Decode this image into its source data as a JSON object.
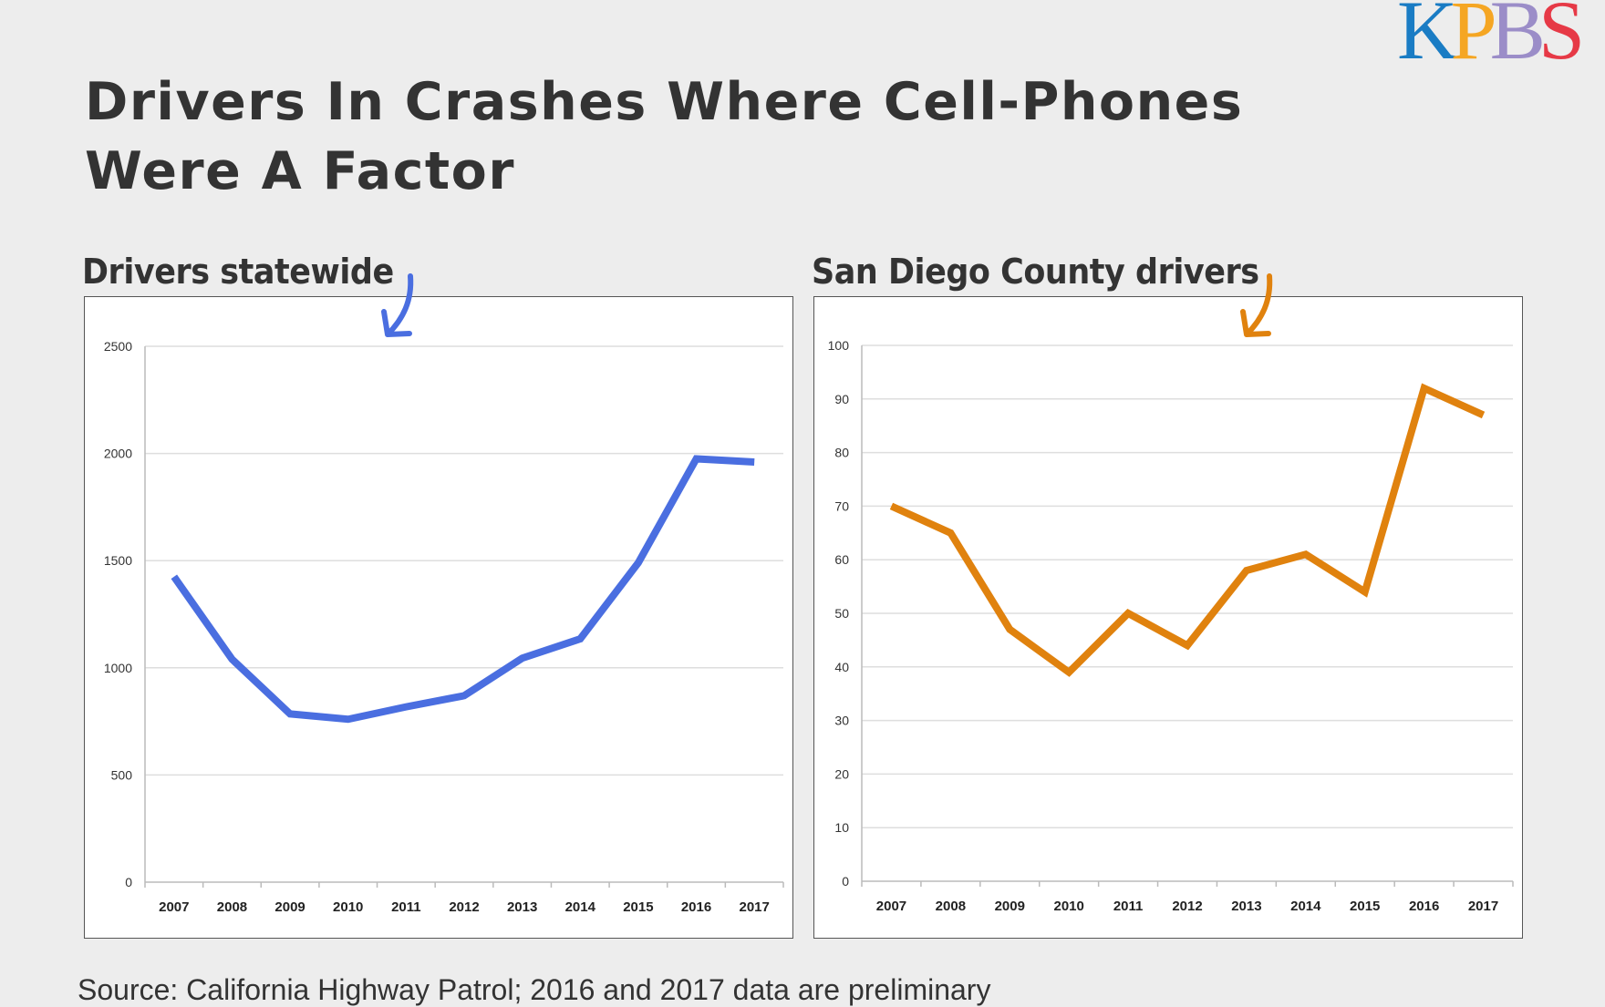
{
  "title": "Drivers In Crashes Where Cell-Phones Were A Factor",
  "logo": {
    "text": "KPBS",
    "letters": [
      {
        "ch": "K",
        "color": "#1a7cc4"
      },
      {
        "ch": "P",
        "color": "#f5a623"
      },
      {
        "ch": "B",
        "color": "#9b8dc8"
      },
      {
        "ch": "S",
        "color": "#e63946"
      }
    ]
  },
  "source": "Source: California Highway Patrol; 2016 and 2017 data are preliminary",
  "chart_data": [
    {
      "type": "line",
      "title": "Drivers statewide",
      "color": "#4a6ee0",
      "x": [
        "2007",
        "2008",
        "2009",
        "2010",
        "2011",
        "2012",
        "2013",
        "2014",
        "2015",
        "2016",
        "2017"
      ],
      "values": [
        1425,
        1040,
        785,
        760,
        818,
        870,
        1045,
        1135,
        1490,
        1975,
        1960
      ],
      "ylim": [
        0,
        2500
      ],
      "yticks": [
        "0",
        "500",
        "1000",
        "1500",
        "2000",
        "2500"
      ],
      "grid": true
    },
    {
      "type": "line",
      "title": "San Diego County drivers",
      "color": "#e0820e",
      "x": [
        "2007",
        "2008",
        "2009",
        "2010",
        "2011",
        "2012",
        "2013",
        "2014",
        "2015",
        "2016",
        "2017"
      ],
      "values": [
        70,
        65,
        47,
        39,
        50,
        44,
        58,
        61,
        54,
        92,
        87
      ],
      "ylim": [
        0,
        100
      ],
      "yticks": [
        "0",
        "10",
        "20",
        "30",
        "40",
        "50",
        "60",
        "70",
        "80",
        "90",
        "100"
      ],
      "grid": true
    }
  ]
}
